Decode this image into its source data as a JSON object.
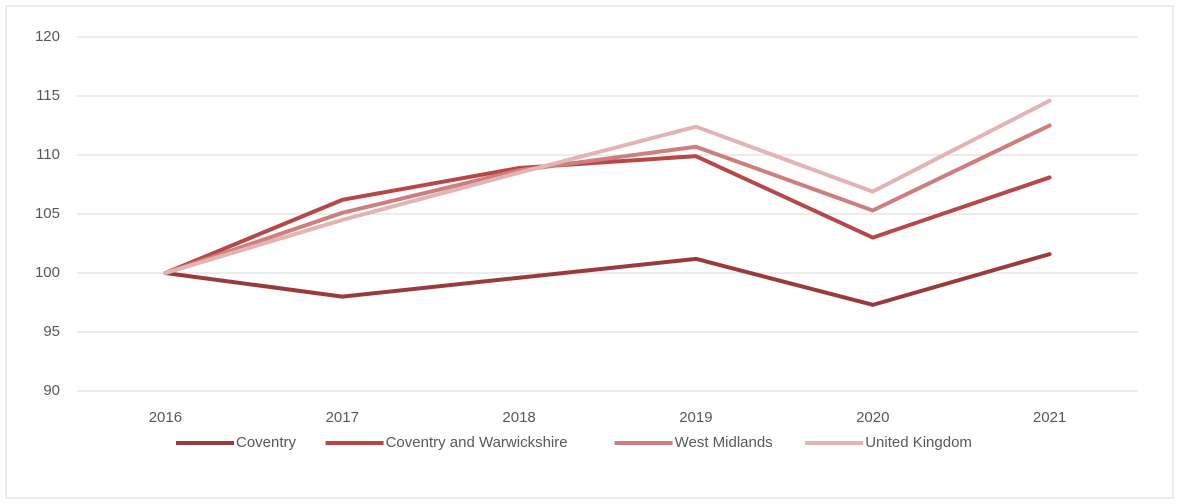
{
  "chart_data": {
    "type": "line",
    "categories": [
      "2016",
      "2017",
      "2018",
      "2019",
      "2020",
      "2021"
    ],
    "series": [
      {
        "name": "Coventry",
        "color": "#9b3a3a",
        "values": [
          100,
          98.0,
          99.6,
          101.2,
          97.3,
          101.6
        ]
      },
      {
        "name": "Coventry and Warwickshire",
        "color": "#b84848",
        "values": [
          100,
          106.2,
          108.9,
          109.9,
          103.0,
          108.1
        ]
      },
      {
        "name": "West Midlands",
        "color": "#cf7e7e",
        "values": [
          100,
          105.1,
          108.7,
          110.7,
          105.3,
          112.5
        ]
      },
      {
        "name": "United Kingdom",
        "color": "#e2b4b4",
        "values": [
          100,
          104.5,
          108.5,
          112.4,
          106.9,
          114.6
        ]
      }
    ],
    "ylim": [
      90,
      120
    ],
    "yticks": [
      90,
      95,
      100,
      105,
      110,
      115,
      120
    ],
    "grid": true,
    "legend": "bottom"
  }
}
